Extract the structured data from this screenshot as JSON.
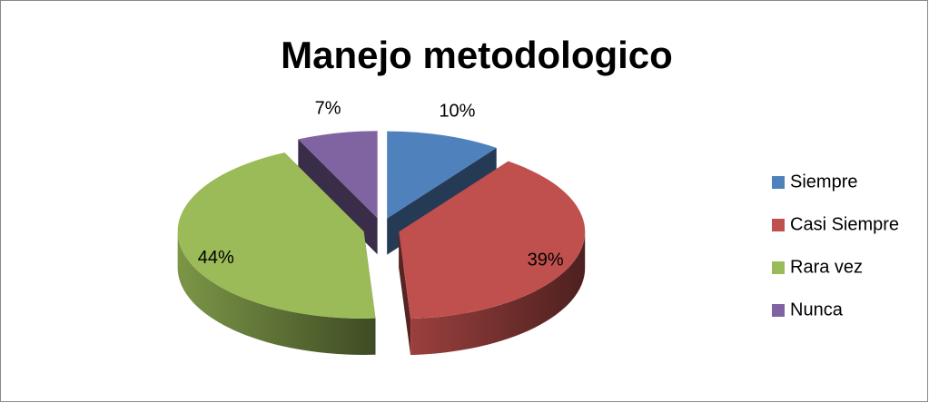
{
  "chart_data": {
    "type": "pie",
    "title": "Manejo metodologico",
    "categories": [
      "Siempre",
      "Casi Siempre",
      "Rara vez",
      "Nunca"
    ],
    "values": [
      10,
      39,
      44,
      7
    ],
    "value_labels": [
      "10%",
      "39%",
      "44%",
      "7%"
    ],
    "colors": [
      "#4f81bd",
      "#c0504d",
      "#9bbb59",
      "#8064a2"
    ],
    "legend": "right"
  }
}
